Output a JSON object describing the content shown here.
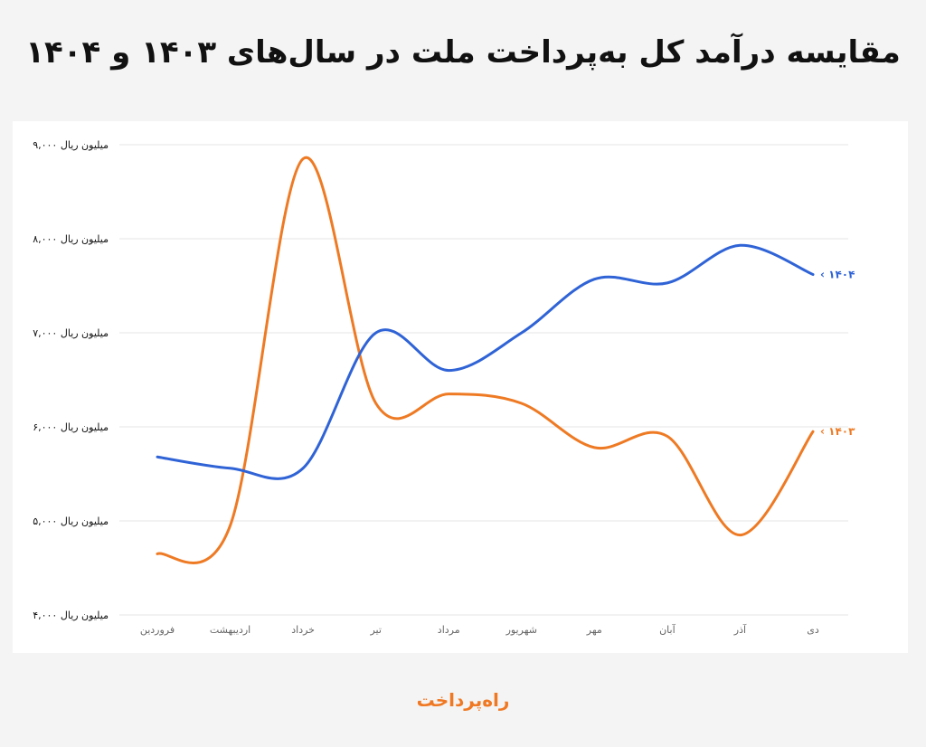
{
  "title": "مقایسه درآمد کل به‌پرداخت ملت در سال‌های ۱۴۰۳ و ۱۴۰۴",
  "brand": {
    "text": "راه‌پرداخت",
    "color": "#f07822"
  },
  "colors": {
    "s1403": "#ee7a24",
    "s1404": "#2f63d6",
    "grid": "#e6e6e6"
  },
  "chart_data": {
    "type": "line",
    "title": "مقایسه درآمد کل به‌پرداخت ملت در سال‌های ۱۴۰۳ و ۱۴۰۴",
    "categories": [
      "فروردین",
      "اردیبهشت",
      "خرداد",
      "تیر",
      "مرداد",
      "شهریور",
      "مهر",
      "آبان",
      "آذر",
      "دی"
    ],
    "ylim": [
      4000,
      9000
    ],
    "yticks": [
      {
        "value": 4000,
        "label": "۴,۰۰۰ میلیون ریال"
      },
      {
        "value": 5000,
        "label": "۵,۰۰۰ میلیون ریال"
      },
      {
        "value": 6000,
        "label": "۶,۰۰۰ میلیون ریال"
      },
      {
        "value": 7000,
        "label": "۷,۰۰۰ میلیون ریال"
      },
      {
        "value": 8000,
        "label": "۸,۰۰۰ میلیون ریال"
      },
      {
        "value": 9000,
        "label": "۹,۰۰۰ میلیون ریال"
      }
    ],
    "grid": true,
    "legend": "end-of-line labels",
    "series": [
      {
        "name": "۱۴۰۳",
        "color": "#ee7a24",
        "values": [
          4650,
          4950,
          8850,
          6250,
          6350,
          6250,
          5780,
          5900,
          4850,
          5950
        ]
      },
      {
        "name": "۱۴۰۴",
        "color": "#2f63d6",
        "values": [
          5680,
          5560,
          5560,
          7000,
          6600,
          7000,
          7570,
          7530,
          7930,
          7620
        ]
      }
    ]
  }
}
